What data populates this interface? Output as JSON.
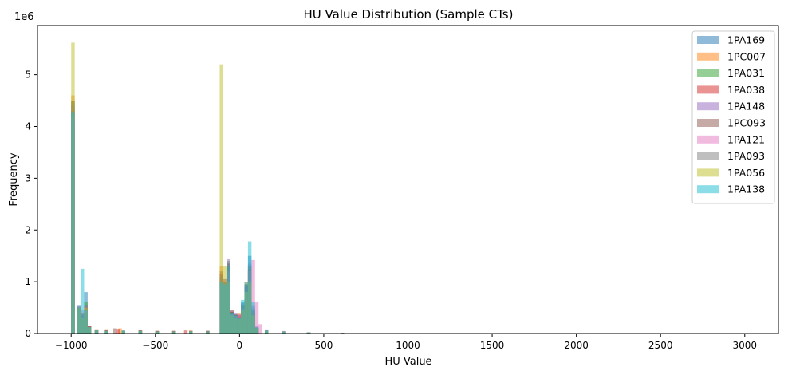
{
  "chart_data": {
    "type": "bar",
    "title": "HU Value Distribution (Sample CTs)",
    "xlabel": "HU Value",
    "ylabel": "Frequency",
    "y_multiplier_label": "1e6",
    "xlim": [
      -1200,
      3200
    ],
    "ylim": [
      0,
      5.95
    ],
    "y_unit_scale": 1000000,
    "bin_width": 21,
    "alpha": 0.5,
    "grid": false,
    "legend_position": "upper right",
    "x_ticks": [
      -1000,
      -500,
      0,
      500,
      1000,
      1500,
      2000,
      2500,
      3000
    ],
    "x_tick_labels": [
      "−1000",
      "−500",
      "0",
      "500",
      "1000",
      "1500",
      "2000",
      "2500",
      "3000"
    ],
    "y_ticks": [
      0,
      1,
      2,
      3,
      4,
      5
    ],
    "y_tick_labels": [
      "0",
      "1",
      "2",
      "3",
      "4",
      "5"
    ],
    "series": [
      {
        "name": "1PA169",
        "color": "#1f77b4",
        "points": [
          [
            -1000,
            4.1
          ],
          [
            -965,
            0.55
          ],
          [
            -944,
            0.3
          ],
          [
            -923,
            0.8
          ],
          [
            -902,
            0.12
          ],
          [
            -860,
            0.06
          ],
          [
            -800,
            0.05
          ],
          [
            -700,
            0.06
          ],
          [
            -600,
            0.05
          ],
          [
            -500,
            0.04
          ],
          [
            -400,
            0.04
          ],
          [
            -300,
            0.04
          ],
          [
            -200,
            0.05
          ],
          [
            -118,
            1.1
          ],
          [
            -97,
            1.0
          ],
          [
            -76,
            1.35
          ],
          [
            -55,
            0.4
          ],
          [
            -34,
            0.35
          ],
          [
            -13,
            0.3
          ],
          [
            8,
            0.6
          ],
          [
            29,
            0.95
          ],
          [
            50,
            1.5
          ],
          [
            71,
            0.5
          ],
          [
            92,
            0.12
          ],
          [
            150,
            0.06
          ],
          [
            250,
            0.04
          ],
          [
            400,
            0.02
          ],
          [
            600,
            0.01
          ],
          [
            850,
            0.005
          ]
        ]
      },
      {
        "name": "1PC007",
        "color": "#ff7f0e",
        "points": [
          [
            -1000,
            4.6
          ],
          [
            -965,
            0.5
          ],
          [
            -944,
            0.4
          ],
          [
            -923,
            0.45
          ],
          [
            -902,
            0.15
          ],
          [
            -860,
            0.08
          ],
          [
            -800,
            0.08
          ],
          [
            -720,
            0.1
          ],
          [
            -600,
            0.06
          ],
          [
            -500,
            0.05
          ],
          [
            -400,
            0.05
          ],
          [
            -300,
            0.06
          ],
          [
            -200,
            0.05
          ],
          [
            -118,
            1.3
          ],
          [
            -97,
            1.05
          ],
          [
            -76,
            1.25
          ],
          [
            -55,
            0.45
          ],
          [
            -34,
            0.35
          ],
          [
            -13,
            0.4
          ],
          [
            8,
            0.5
          ],
          [
            29,
            1.0
          ],
          [
            50,
            1.2
          ],
          [
            71,
            0.35
          ],
          [
            92,
            0.1
          ],
          [
            150,
            0.05
          ],
          [
            250,
            0.04
          ],
          [
            400,
            0.02
          ],
          [
            600,
            0.01
          ],
          [
            850,
            0.005
          ]
        ]
      },
      {
        "name": "1PA031",
        "color": "#2ca02c",
        "points": [
          [
            -1000,
            4.5
          ],
          [
            -965,
            0.48
          ],
          [
            -944,
            0.35
          ],
          [
            -923,
            0.6
          ],
          [
            -902,
            0.12
          ],
          [
            -860,
            0.06
          ],
          [
            -800,
            0.05
          ],
          [
            -700,
            0.05
          ],
          [
            -600,
            0.05
          ],
          [
            -500,
            0.04
          ],
          [
            -400,
            0.04
          ],
          [
            -300,
            0.04
          ],
          [
            -200,
            0.04
          ],
          [
            -118,
            1.05
          ],
          [
            -97,
            0.95
          ],
          [
            -76,
            1.4
          ],
          [
            -55,
            0.42
          ],
          [
            -34,
            0.38
          ],
          [
            -13,
            0.3
          ],
          [
            8,
            0.55
          ],
          [
            29,
            0.85
          ],
          [
            50,
            1.3
          ],
          [
            71,
            0.45
          ],
          [
            92,
            0.11
          ],
          [
            150,
            0.05
          ],
          [
            250,
            0.03
          ],
          [
            400,
            0.02
          ],
          [
            600,
            0.01
          ],
          [
            850,
            0.005
          ]
        ]
      },
      {
        "name": "1PA038",
        "color": "#d62728",
        "points": [
          [
            -1000,
            4.3
          ],
          [
            -965,
            0.5
          ],
          [
            -944,
            0.38
          ],
          [
            -923,
            0.5
          ],
          [
            -902,
            0.14
          ],
          [
            -860,
            0.07
          ],
          [
            -800,
            0.07
          ],
          [
            -730,
            0.09
          ],
          [
            -600,
            0.06
          ],
          [
            -500,
            0.05
          ],
          [
            -400,
            0.05
          ],
          [
            -330,
            0.06
          ],
          [
            -200,
            0.05
          ],
          [
            -118,
            1.15
          ],
          [
            -97,
            1.0
          ],
          [
            -76,
            1.3
          ],
          [
            -55,
            0.4
          ],
          [
            -34,
            0.36
          ],
          [
            -13,
            0.35
          ],
          [
            8,
            0.5
          ],
          [
            29,
            0.9
          ],
          [
            50,
            1.25
          ],
          [
            71,
            0.42
          ],
          [
            92,
            0.1
          ],
          [
            150,
            0.05
          ],
          [
            250,
            0.03
          ],
          [
            400,
            0.02
          ],
          [
            600,
            0.01
          ],
          [
            850,
            0.005
          ]
        ]
      },
      {
        "name": "1PA148",
        "color": "#9467bd",
        "points": [
          [
            -1000,
            4.4
          ],
          [
            -965,
            0.52
          ],
          [
            -944,
            0.36
          ],
          [
            -923,
            0.55
          ],
          [
            -902,
            0.13
          ],
          [
            -860,
            0.06
          ],
          [
            -800,
            0.05
          ],
          [
            -700,
            0.05
          ],
          [
            -600,
            0.05
          ],
          [
            -500,
            0.04
          ],
          [
            -400,
            0.04
          ],
          [
            -300,
            0.04
          ],
          [
            -200,
            0.04
          ],
          [
            -118,
            1.1
          ],
          [
            -97,
            1.05
          ],
          [
            -76,
            1.45
          ],
          [
            -55,
            0.45
          ],
          [
            -34,
            0.4
          ],
          [
            -13,
            0.32
          ],
          [
            8,
            0.58
          ],
          [
            29,
            0.92
          ],
          [
            50,
            1.35
          ],
          [
            71,
            0.55
          ],
          [
            92,
            0.14
          ],
          [
            150,
            0.06
          ],
          [
            250,
            0.04
          ],
          [
            400,
            0.02
          ],
          [
            600,
            0.01
          ],
          [
            850,
            0.005
          ]
        ]
      },
      {
        "name": "1PC093",
        "color": "#8c564b",
        "points": [
          [
            -1000,
            4.5
          ],
          [
            -965,
            0.5
          ],
          [
            -944,
            0.4
          ],
          [
            -923,
            0.5
          ],
          [
            -902,
            0.14
          ],
          [
            -860,
            0.08
          ],
          [
            -800,
            0.08
          ],
          [
            -750,
            0.1
          ],
          [
            -600,
            0.06
          ],
          [
            -500,
            0.05
          ],
          [
            -400,
            0.05
          ],
          [
            -300,
            0.05
          ],
          [
            -200,
            0.05
          ],
          [
            -118,
            1.2
          ],
          [
            -97,
            1.0
          ],
          [
            -76,
            1.3
          ],
          [
            -55,
            0.42
          ],
          [
            -34,
            0.36
          ],
          [
            -13,
            0.36
          ],
          [
            8,
            0.52
          ],
          [
            29,
            0.95
          ],
          [
            50,
            1.2
          ],
          [
            71,
            0.38
          ],
          [
            92,
            0.1
          ],
          [
            150,
            0.05
          ],
          [
            250,
            0.04
          ],
          [
            400,
            0.02
          ],
          [
            600,
            0.01
          ],
          [
            850,
            0.005
          ]
        ]
      },
      {
        "name": "1PA121",
        "color": "#e377c2",
        "points": [
          [
            -1000,
            4.2
          ],
          [
            -965,
            0.45
          ],
          [
            -944,
            0.45
          ],
          [
            -923,
            0.5
          ],
          [
            -902,
            0.12
          ],
          [
            -860,
            0.06
          ],
          [
            -800,
            0.05
          ],
          [
            -700,
            0.05
          ],
          [
            -600,
            0.05
          ],
          [
            -500,
            0.04
          ],
          [
            -400,
            0.04
          ],
          [
            -300,
            0.04
          ],
          [
            -200,
            0.04
          ],
          [
            -118,
            1.0
          ],
          [
            -97,
            0.95
          ],
          [
            -76,
            1.2
          ],
          [
            -55,
            0.38
          ],
          [
            -34,
            0.34
          ],
          [
            -13,
            0.38
          ],
          [
            8,
            0.5
          ],
          [
            29,
            0.8
          ],
          [
            50,
            1.2
          ],
          [
            71,
            1.42
          ],
          [
            92,
            0.6
          ],
          [
            113,
            0.18
          ],
          [
            150,
            0.08
          ],
          [
            250,
            0.05
          ],
          [
            400,
            0.02
          ],
          [
            600,
            0.01
          ],
          [
            850,
            0.005
          ]
        ]
      },
      {
        "name": "1PA093",
        "color": "#7f7f7f",
        "points": [
          [
            -1000,
            4.4
          ],
          [
            -965,
            0.5
          ],
          [
            -944,
            0.35
          ],
          [
            -923,
            0.55
          ],
          [
            -902,
            0.13
          ],
          [
            -860,
            0.06
          ],
          [
            -800,
            0.05
          ],
          [
            -700,
            0.05
          ],
          [
            -600,
            0.05
          ],
          [
            -500,
            0.04
          ],
          [
            -400,
            0.04
          ],
          [
            -300,
            0.04
          ],
          [
            -200,
            0.04
          ],
          [
            -118,
            1.1
          ],
          [
            -97,
            1.0
          ],
          [
            -76,
            1.35
          ],
          [
            -55,
            0.4
          ],
          [
            -34,
            0.35
          ],
          [
            -13,
            0.3
          ],
          [
            8,
            0.55
          ],
          [
            29,
            0.9
          ],
          [
            50,
            1.3
          ],
          [
            71,
            0.45
          ],
          [
            92,
            0.11
          ],
          [
            150,
            0.05
          ],
          [
            250,
            0.03
          ],
          [
            400,
            0.02
          ],
          [
            600,
            0.01
          ],
          [
            850,
            0.005
          ]
        ]
      },
      {
        "name": "1PA056",
        "color": "#bcbd22",
        "points": [
          [
            -1000,
            5.62
          ],
          [
            -965,
            0.5
          ],
          [
            -944,
            0.3
          ],
          [
            -923,
            0.5
          ],
          [
            -902,
            0.12
          ],
          [
            -860,
            0.06
          ],
          [
            -800,
            0.05
          ],
          [
            -700,
            0.05
          ],
          [
            -600,
            0.05
          ],
          [
            -500,
            0.04
          ],
          [
            -400,
            0.04
          ],
          [
            -300,
            0.04
          ],
          [
            -200,
            0.04
          ],
          [
            -118,
            5.2
          ],
          [
            -97,
            1.3
          ],
          [
            -76,
            1.0
          ],
          [
            -55,
            0.35
          ],
          [
            -34,
            0.3
          ],
          [
            -13,
            0.28
          ],
          [
            8,
            0.45
          ],
          [
            29,
            0.8
          ],
          [
            50,
            1.0
          ],
          [
            71,
            0.35
          ],
          [
            92,
            0.1
          ],
          [
            150,
            0.05
          ],
          [
            250,
            0.03
          ],
          [
            400,
            0.02
          ],
          [
            600,
            0.01
          ],
          [
            850,
            0.005
          ]
        ]
      },
      {
        "name": "1PA138",
        "color": "#17becf",
        "points": [
          [
            -1000,
            4.28
          ],
          [
            -965,
            0.5
          ],
          [
            -944,
            1.25
          ],
          [
            -923,
            0.45
          ],
          [
            -902,
            0.12
          ],
          [
            -860,
            0.06
          ],
          [
            -800,
            0.05
          ],
          [
            -700,
            0.05
          ],
          [
            -600,
            0.05
          ],
          [
            -500,
            0.04
          ],
          [
            -400,
            0.04
          ],
          [
            -300,
            0.04
          ],
          [
            -200,
            0.04
          ],
          [
            -118,
            1.0
          ],
          [
            -97,
            0.95
          ],
          [
            -76,
            1.3
          ],
          [
            -55,
            0.4
          ],
          [
            -34,
            0.35
          ],
          [
            -13,
            0.3
          ],
          [
            8,
            0.65
          ],
          [
            29,
            1.0
          ],
          [
            50,
            1.78
          ],
          [
            71,
            0.6
          ],
          [
            92,
            0.12
          ],
          [
            150,
            0.06
          ],
          [
            250,
            0.04
          ],
          [
            400,
            0.02
          ],
          [
            600,
            0.01
          ],
          [
            850,
            0.005
          ]
        ]
      }
    ]
  }
}
